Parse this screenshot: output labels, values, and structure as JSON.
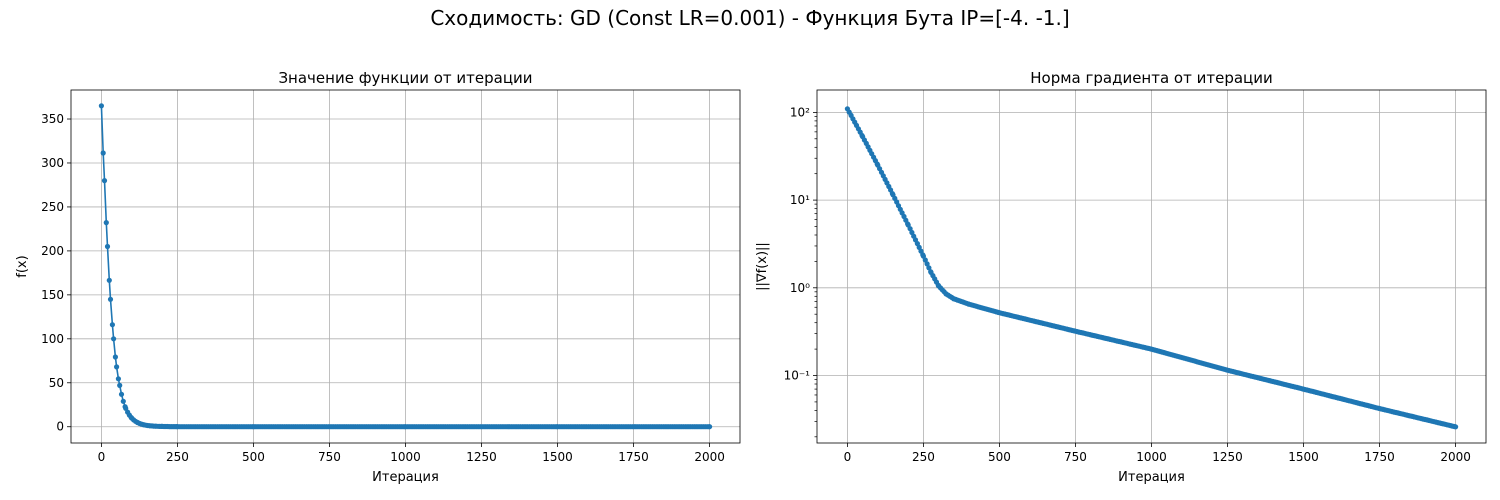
{
  "suptitle": "Сходимость: GD (Const LR=0.001) - Функция Бута IP=[-4. -1.]",
  "colors": {
    "series": "#1f77b4",
    "grid": "#b0b0b0",
    "axis": "#000000"
  },
  "chart_data": [
    {
      "type": "line",
      "title": "Значение функции от итерации",
      "xlabel": "Итерация",
      "ylabel": "f(x)",
      "yscale": "linear",
      "xlim": [
        -100,
        2100
      ],
      "ylim": [
        -18.5,
        383
      ],
      "xticks": [
        0,
        250,
        500,
        750,
        1000,
        1250,
        1500,
        1750,
        2000
      ],
      "xtick_labels": [
        "0",
        "250",
        "500",
        "750",
        "1000",
        "1250",
        "1500",
        "1750",
        "2000"
      ],
      "yticks": [
        0,
        50,
        100,
        150,
        200,
        250,
        300,
        350
      ],
      "ytick_labels": [
        "0",
        "50",
        "100",
        "150",
        "200",
        "250",
        "300",
        "350"
      ],
      "grid": true,
      "marker": "circle",
      "series": [
        {
          "x": [
            0,
            10,
            20,
            30,
            40,
            50,
            60,
            80,
            100,
            120,
            140,
            160,
            180,
            200,
            250,
            500,
            1000,
            1500,
            2000
          ],
          "y": [
            365,
            280,
            205,
            145,
            100,
            68,
            47,
            21,
            9.7,
            4.6,
            2.2,
            1.1,
            0.6,
            0.35,
            0.1,
            0.01,
            0.0,
            0.0,
            0.0
          ]
        }
      ]
    },
    {
      "type": "line",
      "title": "Норма градиента от итерации",
      "xlabel": "Итерация",
      "ylabel": "||∇f(x)||",
      "yscale": "log",
      "xlim": [
        -100,
        2100
      ],
      "ylim": [
        0.017,
        180
      ],
      "xticks": [
        0,
        250,
        500,
        750,
        1000,
        1250,
        1500,
        1750,
        2000
      ],
      "xtick_labels": [
        "0",
        "250",
        "500",
        "750",
        "1000",
        "1250",
        "1500",
        "1750",
        "2000"
      ],
      "yticks": [
        0.1,
        1,
        10,
        100
      ],
      "ytick_labels": [
        "10⁻¹",
        "10⁰",
        "10¹",
        "10²"
      ],
      "grid": true,
      "marker": "circle",
      "series": [
        {
          "x": [
            0,
            50,
            100,
            150,
            200,
            250,
            275,
            300,
            325,
            350,
            400,
            500,
            750,
            1000,
            1250,
            1500,
            1750,
            2000
          ],
          "y": [
            110,
            53,
            25,
            11.5,
            5.2,
            2.3,
            1.5,
            1.05,
            0.85,
            0.75,
            0.65,
            0.52,
            0.32,
            0.2,
            0.115,
            0.07,
            0.042,
            0.026
          ]
        }
      ]
    }
  ]
}
